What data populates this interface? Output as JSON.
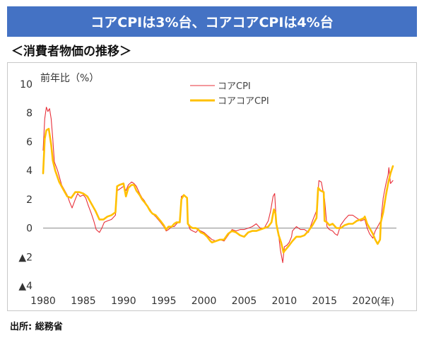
{
  "header": {
    "title": "コアCPIは3%台、コアコアCPIは4%台"
  },
  "subtitle": "＜消費者物価の推移＞",
  "source": "出所: 総務省",
  "chart_data": {
    "type": "line",
    "ylabel": "前年比（%）",
    "xlabel": "(年)",
    "ylim": [
      -4,
      10
    ],
    "xlim": [
      1980,
      2023.5
    ],
    "y_ticks": [
      10,
      8,
      6,
      4,
      2,
      0,
      -2,
      -4
    ],
    "y_tick_labels": [
      "10",
      "8",
      "6",
      "4",
      "2",
      "0",
      "▲2",
      "▲4"
    ],
    "x_ticks": [
      1980,
      1985,
      1990,
      1995,
      2000,
      2005,
      2010,
      2015,
      2020
    ],
    "x_tick_labels": [
      "1980",
      "1985",
      "1990",
      "1995",
      "2000",
      "2005",
      "2010",
      "2015",
      "2020"
    ],
    "legend_position": "top-center",
    "series": [
      {
        "name": "コアCPI",
        "color": "#e8303a",
        "points": [
          [
            1980,
            5.4
          ],
          [
            1980.2,
            7.6
          ],
          [
            1980.4,
            8.4
          ],
          [
            1980.6,
            8.1
          ],
          [
            1980.8,
            8.3
          ],
          [
            1981,
            7.6
          ],
          [
            1981.2,
            6.2
          ],
          [
            1981.4,
            4.6
          ],
          [
            1981.6,
            4.3
          ],
          [
            1981.8,
            4.0
          ],
          [
            1982,
            3.6
          ],
          [
            1982.3,
            3.0
          ],
          [
            1982.6,
            2.7
          ],
          [
            1983,
            2.3
          ],
          [
            1983.3,
            1.8
          ],
          [
            1983.6,
            1.4
          ],
          [
            1984,
            2.0
          ],
          [
            1984.3,
            2.4
          ],
          [
            1984.6,
            2.2
          ],
          [
            1985,
            2.3
          ],
          [
            1985.3,
            2.1
          ],
          [
            1985.6,
            1.6
          ],
          [
            1986,
            1.0
          ],
          [
            1986.3,
            0.5
          ],
          [
            1986.6,
            -0.1
          ],
          [
            1987,
            -0.3
          ],
          [
            1987.3,
            0.0
          ],
          [
            1987.6,
            0.4
          ],
          [
            1988,
            0.5
          ],
          [
            1988.5,
            0.6
          ],
          [
            1989,
            0.9
          ],
          [
            1989.2,
            2.6
          ],
          [
            1989.5,
            2.7
          ],
          [
            1990,
            2.9
          ],
          [
            1990.3,
            2.6
          ],
          [
            1990.6,
            3.0
          ],
          [
            1991,
            3.2
          ],
          [
            1991.3,
            3.1
          ],
          [
            1991.6,
            2.9
          ],
          [
            1992,
            2.4
          ],
          [
            1992.3,
            2.1
          ],
          [
            1992.6,
            1.9
          ],
          [
            1993,
            1.5
          ],
          [
            1993.3,
            1.3
          ],
          [
            1993.6,
            1.0
          ],
          [
            1994,
            0.8
          ],
          [
            1994.3,
            0.6
          ],
          [
            1994.6,
            0.4
          ],
          [
            1995,
            0.1
          ],
          [
            1995.3,
            -0.2
          ],
          [
            1995.6,
            -0.1
          ],
          [
            1996,
            0.1
          ],
          [
            1996.3,
            0.1
          ],
          [
            1996.6,
            0.3
          ],
          [
            1997,
            0.5
          ],
          [
            1997.2,
            2.2
          ],
          [
            1997.5,
            2.3
          ],
          [
            1997.9,
            2.1
          ],
          [
            1998,
            0.3
          ],
          [
            1998.3,
            -0.1
          ],
          [
            1998.6,
            -0.2
          ],
          [
            1999,
            -0.3
          ],
          [
            1999.3,
            -0.1
          ],
          [
            1999.6,
            -0.2
          ],
          [
            2000,
            -0.3
          ],
          [
            2000.4,
            -0.5
          ],
          [
            2000.8,
            -0.7
          ],
          [
            2001,
            -0.8
          ],
          [
            2001.5,
            -0.9
          ],
          [
            2002,
            -0.8
          ],
          [
            2002.5,
            -0.9
          ],
          [
            2003,
            -0.5
          ],
          [
            2003.5,
            -0.1
          ],
          [
            2004,
            -0.2
          ],
          [
            2004.5,
            -0.1
          ],
          [
            2005,
            -0.1
          ],
          [
            2005.5,
            0.0
          ],
          [
            2006,
            0.1
          ],
          [
            2006.5,
            0.3
          ],
          [
            2007,
            0.0
          ],
          [
            2007.5,
            0.0
          ],
          [
            2008,
            0.5
          ],
          [
            2008.3,
            1.2
          ],
          [
            2008.6,
            2.2
          ],
          [
            2008.8,
            2.4
          ],
          [
            2009,
            0.4
          ],
          [
            2009.3,
            -0.5
          ],
          [
            2009.5,
            -1.5
          ],
          [
            2009.8,
            -2.4
          ],
          [
            2010,
            -1.3
          ],
          [
            2010.3,
            -1.2
          ],
          [
            2010.6,
            -1.0
          ],
          [
            2010.9,
            -0.6
          ],
          [
            2011,
            -0.2
          ],
          [
            2011.5,
            0.1
          ],
          [
            2012,
            -0.1
          ],
          [
            2012.5,
            -0.1
          ],
          [
            2013,
            -0.3
          ],
          [
            2013.5,
            0.5
          ],
          [
            2014,
            1.2
          ],
          [
            2014.3,
            3.3
          ],
          [
            2014.6,
            3.2
          ],
          [
            2015,
            2.0
          ],
          [
            2015.3,
            0.1
          ],
          [
            2015.6,
            -0.1
          ],
          [
            2016,
            -0.2
          ],
          [
            2016.3,
            -0.4
          ],
          [
            2016.6,
            -0.5
          ],
          [
            2017,
            0.2
          ],
          [
            2017.5,
            0.6
          ],
          [
            2018,
            0.9
          ],
          [
            2018.5,
            0.9
          ],
          [
            2019,
            0.7
          ],
          [
            2019.5,
            0.5
          ],
          [
            2020,
            0.6
          ],
          [
            2020.3,
            0.0
          ],
          [
            2020.6,
            -0.4
          ],
          [
            2021,
            -0.7
          ],
          [
            2021.3,
            -0.2
          ],
          [
            2021.6,
            0.1
          ],
          [
            2022,
            0.5
          ],
          [
            2022.3,
            2.1
          ],
          [
            2022.6,
            3.0
          ],
          [
            2022.9,
            3.7
          ],
          [
            2023,
            4.2
          ],
          [
            2023.2,
            3.1
          ],
          [
            2023.5,
            3.3
          ]
        ]
      },
      {
        "name": "コアコアCPI",
        "color": "#ffc000",
        "points": [
          [
            1980,
            3.8
          ],
          [
            1980.2,
            6.2
          ],
          [
            1980.4,
            6.8
          ],
          [
            1980.7,
            6.9
          ],
          [
            1981,
            5.8
          ],
          [
            1981.2,
            4.7
          ],
          [
            1981.5,
            4.0
          ],
          [
            1982,
            3.2
          ],
          [
            1982.5,
            2.7
          ],
          [
            1983,
            2.2
          ],
          [
            1983.5,
            2.1
          ],
          [
            1984,
            2.5
          ],
          [
            1984.5,
            2.5
          ],
          [
            1985,
            2.4
          ],
          [
            1985.5,
            2.2
          ],
          [
            1986,
            1.7
          ],
          [
            1986.5,
            1.2
          ],
          [
            1987,
            0.6
          ],
          [
            1987.5,
            0.6
          ],
          [
            1988,
            0.8
          ],
          [
            1988.5,
            0.9
          ],
          [
            1989,
            1.1
          ],
          [
            1989.2,
            2.9
          ],
          [
            1989.5,
            3.0
          ],
          [
            1990,
            3.1
          ],
          [
            1990.3,
            2.2
          ],
          [
            1990.6,
            2.8
          ],
          [
            1991,
            3.0
          ],
          [
            1991.3,
            3.0
          ],
          [
            1991.6,
            2.6
          ],
          [
            1992,
            2.3
          ],
          [
            1992.3,
            2.0
          ],
          [
            1992.6,
            1.8
          ],
          [
            1993,
            1.5
          ],
          [
            1993.3,
            1.2
          ],
          [
            1993.6,
            1.0
          ],
          [
            1994,
            0.9
          ],
          [
            1994.3,
            0.7
          ],
          [
            1994.6,
            0.5
          ],
          [
            1995,
            0.2
          ],
          [
            1995.3,
            -0.1
          ],
          [
            1995.6,
            0.1
          ],
          [
            1996,
            0.1
          ],
          [
            1996.3,
            0.3
          ],
          [
            1996.6,
            0.4
          ],
          [
            1997,
            0.4
          ],
          [
            1997.2,
            2.0
          ],
          [
            1997.5,
            2.3
          ],
          [
            1997.9,
            2.1
          ],
          [
            1998,
            0.3
          ],
          [
            1998.3,
            0.1
          ],
          [
            1998.6,
            0.0
          ],
          [
            1999,
            0.0
          ],
          [
            1999.3,
            -0.1
          ],
          [
            1999.6,
            -0.3
          ],
          [
            2000,
            -0.4
          ],
          [
            2000.4,
            -0.6
          ],
          [
            2000.8,
            -0.9
          ],
          [
            2001,
            -1.0
          ],
          [
            2001.5,
            -0.9
          ],
          [
            2002,
            -0.8
          ],
          [
            2002.5,
            -0.8
          ],
          [
            2003,
            -0.4
          ],
          [
            2003.5,
            -0.2
          ],
          [
            2004,
            -0.3
          ],
          [
            2004.5,
            -0.5
          ],
          [
            2005,
            -0.6
          ],
          [
            2005.5,
            -0.3
          ],
          [
            2006,
            -0.2
          ],
          [
            2006.5,
            -0.2
          ],
          [
            2007,
            -0.1
          ],
          [
            2007.5,
            0.0
          ],
          [
            2008,
            0.1
          ],
          [
            2008.4,
            0.4
          ],
          [
            2008.7,
            1.3
          ],
          [
            2008.9,
            1.0
          ],
          [
            2009,
            0.3
          ],
          [
            2009.3,
            -0.5
          ],
          [
            2009.6,
            -1.0
          ],
          [
            2009.9,
            -1.7
          ],
          [
            2010,
            -1.6
          ],
          [
            2010.3,
            -1.4
          ],
          [
            2010.6,
            -1.2
          ],
          [
            2011,
            -0.9
          ],
          [
            2011.5,
            -0.6
          ],
          [
            2012,
            -0.6
          ],
          [
            2012.5,
            -0.5
          ],
          [
            2013,
            -0.2
          ],
          [
            2013.5,
            0.2
          ],
          [
            2014,
            0.7
          ],
          [
            2014.2,
            2.8
          ],
          [
            2014.5,
            2.6
          ],
          [
            2014.9,
            2.5
          ],
          [
            2015,
            0.5
          ],
          [
            2015.3,
            0.4
          ],
          [
            2015.6,
            0.2
          ],
          [
            2016,
            0.3
          ],
          [
            2016.5,
            0.0
          ],
          [
            2017,
            0.0
          ],
          [
            2017.5,
            0.2
          ],
          [
            2018,
            0.3
          ],
          [
            2018.5,
            0.3
          ],
          [
            2019,
            0.5
          ],
          [
            2019.5,
            0.6
          ],
          [
            2019.9,
            0.7
          ],
          [
            2020,
            0.8
          ],
          [
            2020.3,
            0.3
          ],
          [
            2020.6,
            0.0
          ],
          [
            2021,
            -0.4
          ],
          [
            2021.3,
            -0.8
          ],
          [
            2021.6,
            -1.1
          ],
          [
            2021.9,
            -0.8
          ],
          [
            2022,
            0.4
          ],
          [
            2022.3,
            1.1
          ],
          [
            2022.6,
            2.2
          ],
          [
            2022.9,
            3.1
          ],
          [
            2023.2,
            3.8
          ],
          [
            2023.5,
            4.3
          ]
        ]
      }
    ]
  }
}
